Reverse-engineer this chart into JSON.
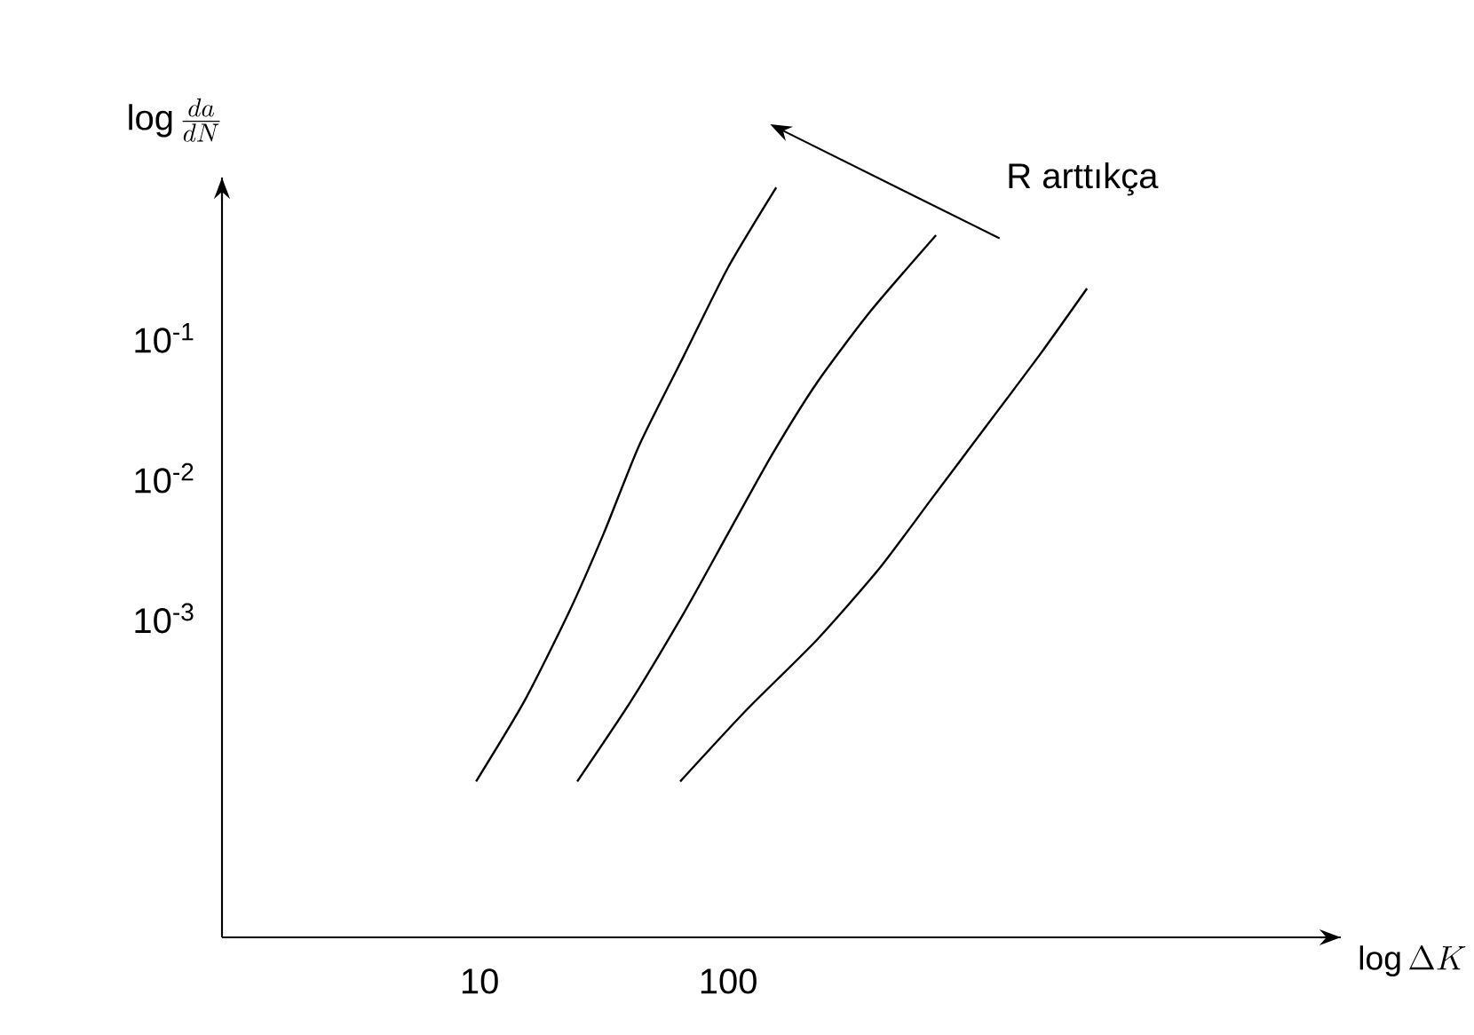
{
  "chart_data": {
    "type": "line",
    "log": "xy",
    "xlabel": "\\log \\Delta K",
    "ylabel": "\\log \\frac{da}{dN}",
    "xlim": [
      0.92,
      29100
    ],
    "ylim": [
      5.27e-06,
      1.4
    ],
    "xticks": [
      10,
      100
    ],
    "yticks": [
      {
        "value": 0.001,
        "label": "10$^{-3}$"
      },
      {
        "value": 0.01,
        "label": "10$^{-2}$"
      },
      {
        "value": 0.1,
        "label": "10$^{-1}$"
      }
    ],
    "annotations": [
      "R arttıkça"
    ],
    "grid": false,
    "marker": "none",
    "line_style": "solid",
    "series": [
      {
        "color": "#000000",
        "x": [
          9.68,
          15.1,
          22.8,
          31.6,
          44.0,
          66.3,
          100,
          156
        ],
        "values": [
          6.84e-05,
          0.000254,
          0.00109,
          0.00405,
          0.0174,
          0.0747,
          0.321,
          1.19
        ]
      },
      {
        "color": "#000000",
        "x": [
          24.7,
          40.5,
          66.3,
          100,
          151,
          228,
          373,
          685
        ],
        "values": [
          6.84e-05,
          0.000254,
          0.00109,
          0.00405,
          0.015,
          0.0483,
          0.155,
          0.542
        ]
      },
      {
        "color": "#000000",
        "x": [
          64.1,
          118,
          228,
          405,
          663,
          1086,
          1778,
          2773
        ],
        "values": [
          6.84e-05,
          0.00022,
          0.000705,
          0.00226,
          0.00726,
          0.0233,
          0.0747,
          0.226
        ]
      }
    ]
  }
}
